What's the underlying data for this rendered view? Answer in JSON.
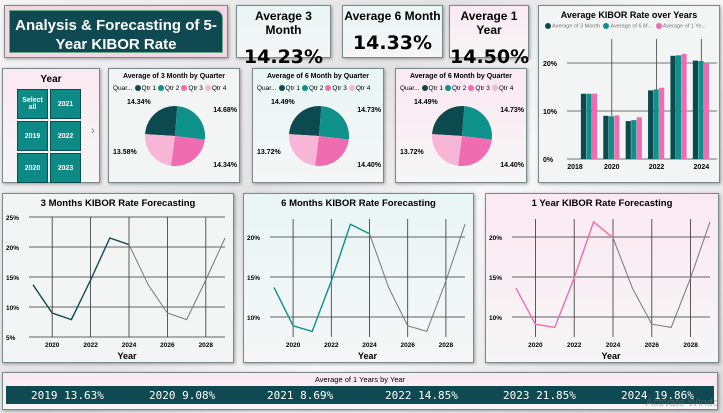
{
  "title": "Analysis & Forecasting of 5-Year KIBOR Rate",
  "kpis": [
    {
      "label": "Average 3 Month",
      "value": "14.23%"
    },
    {
      "label": "Average 6 Month",
      "value": "14.33%"
    },
    {
      "label": "Average 1 Year",
      "value": "14.50%"
    }
  ],
  "slicer": {
    "title": "Year",
    "items": [
      "Select all",
      "2021",
      "2019",
      "2022",
      "2020",
      "2023"
    ]
  },
  "colors": {
    "q1": "#0d4a50",
    "q2": "#0e918b",
    "q3": "#f06cb0",
    "q4": "#f7b6d6",
    "dark": "#0f4a52",
    "forecast": "#777777"
  },
  "pies": [
    {
      "title": "Average of 3 Month by Quarter",
      "legend_title": "Quar...",
      "legend": [
        "Qtr 1",
        "Qtr 2",
        "Qtr 3",
        "Qtr 4"
      ],
      "values": [
        14.34,
        14.68,
        14.34,
        13.58
      ],
      "labels": [
        "14.34%",
        "14.68%",
        "14.34%",
        "13.58%"
      ]
    },
    {
      "title": "Average of 6 Month by Quarter",
      "legend_title": "Quar...",
      "legend": [
        "Qtr 1",
        "Qtr 2",
        "Qtr 3",
        "Qtr 4"
      ],
      "values": [
        14.49,
        14.73,
        14.4,
        13.72
      ],
      "labels": [
        "14.49%",
        "14.73%",
        "14.40%",
        "13.72%"
      ]
    },
    {
      "title": "Average of 6 Month by Quarter",
      "legend_title": "Quar...",
      "legend": [
        "Qtr 1",
        "Qtr 2",
        "Qtr 3",
        "Qtr 4"
      ],
      "values": [
        14.49,
        14.73,
        14.4,
        13.72
      ],
      "labels": [
        "14.49%",
        "14.73%",
        "14.40%",
        "13.72%"
      ]
    }
  ],
  "chart_data": [
    {
      "type": "bar",
      "title": "Average KIBOR Rate over Years",
      "legend": [
        "Average of 3 Month",
        "Average of 6 M...",
        "Average of 1 Ye..."
      ],
      "categories": [
        2019,
        2020,
        2021,
        2022,
        2023,
        2024
      ],
      "series": [
        {
          "name": "Average of 3 Month",
          "values": [
            13.6,
            9.0,
            7.9,
            14.3,
            21.5,
            20.5
          ]
        },
        {
          "name": "Average of 6 M...",
          "values": [
            13.6,
            8.9,
            8.1,
            14.5,
            21.6,
            20.4
          ]
        },
        {
          "name": "Average of 1 Ye...",
          "values": [
            13.63,
            9.08,
            8.69,
            14.85,
            21.85,
            19.86
          ]
        }
      ],
      "xticks": [
        "2018",
        "2020",
        "2022",
        "2024"
      ],
      "yticks": [
        "0%",
        "10%",
        "20%"
      ],
      "ylim": [
        0,
        25
      ],
      "xlim": [
        2018,
        2024.7
      ]
    },
    {
      "type": "line",
      "title": "3 Months KIBOR Rate Forecasting",
      "xlabel": "Year",
      "x": [
        2019,
        2020,
        2021,
        2022,
        2023,
        2024,
        2025,
        2026,
        2027,
        2028,
        2029
      ],
      "actual": [
        13.7,
        9.0,
        7.9,
        14.5,
        21.5,
        20.4
      ],
      "forecast": [
        20.4,
        13.7,
        9.0,
        7.9,
        14.5,
        21.5
      ],
      "xticks": [
        "2020",
        "2022",
        "2024",
        "2026",
        "2028"
      ],
      "yticks": [
        "5%",
        "10%",
        "15%",
        "20%",
        "25%"
      ],
      "ylim": [
        5,
        25
      ]
    },
    {
      "type": "line",
      "title": "6 Months KIBOR Rate Forecasting",
      "xlabel": "Year",
      "x": [
        2019,
        2020,
        2021,
        2022,
        2023,
        2024,
        2025,
        2026,
        2027,
        2028,
        2029
      ],
      "actual": [
        13.7,
        8.9,
        8.2,
        14.5,
        21.6,
        20.4
      ],
      "forecast": [
        20.4,
        13.7,
        8.9,
        8.2,
        14.5,
        21.6
      ],
      "xticks": [
        "2020",
        "2022",
        "2024",
        "2026",
        "2028"
      ],
      "yticks": [
        "10%",
        "15%",
        "20%"
      ],
      "ylim": [
        7.5,
        22.5
      ]
    },
    {
      "type": "line",
      "title": "1 Year KIBOR Rate Forecasting",
      "xlabel": "Year",
      "x": [
        2019,
        2020,
        2021,
        2022,
        2023,
        2024,
        2025,
        2026,
        2027,
        2028,
        2029
      ],
      "actual": [
        13.6,
        9.1,
        8.7,
        14.9,
        21.9,
        19.9
      ],
      "forecast": [
        19.9,
        13.6,
        9.1,
        8.7,
        14.9,
        21.9
      ],
      "xticks": [
        "2020",
        "2022",
        "2024",
        "2026",
        "2028"
      ],
      "yticks": [
        "10%",
        "15%",
        "20%"
      ],
      "ylim": [
        7.5,
        22.5
      ]
    }
  ],
  "bottom": {
    "title": "Average of 1 Years by Year",
    "items": [
      "2019 13.63%",
      "2020 9.08%",
      "2021 8.69%",
      "2022 14.85%",
      "2023 21.85%",
      "2024 19.86%"
    ]
  },
  "watermark": "Activate Windo"
}
